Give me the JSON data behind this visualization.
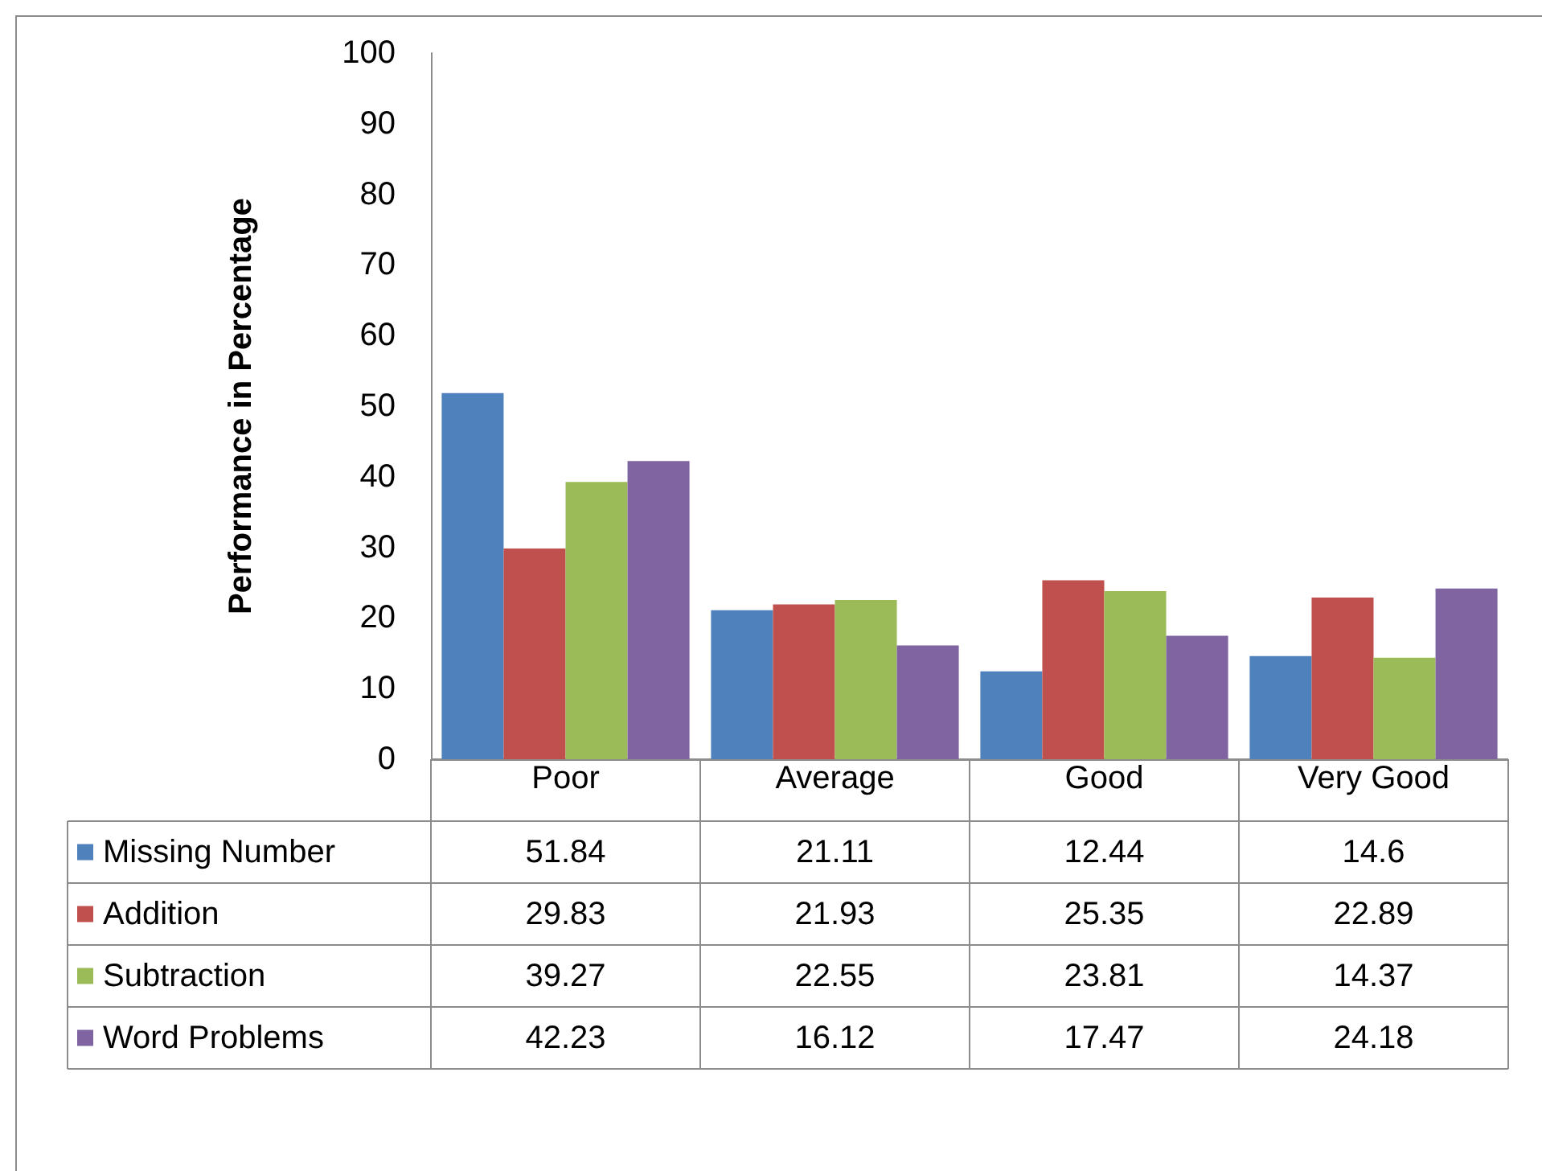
{
  "chart_data": {
    "type": "bar",
    "ylabel": "Performance in Percentage",
    "categories": [
      "Poor",
      "Average",
      "Good",
      "Very Good"
    ],
    "series": [
      {
        "name": "Missing Number",
        "color": "#4f81bd",
        "values": [
          51.84,
          21.11,
          12.44,
          14.6
        ]
      },
      {
        "name": "Addition",
        "color": "#c0504d",
        "values": [
          29.83,
          21.93,
          25.35,
          22.89
        ]
      },
      {
        "name": "Subtraction",
        "color": "#9bbb59",
        "values": [
          39.27,
          22.55,
          23.81,
          14.37
        ]
      },
      {
        "name": "Word Problems",
        "color": "#8064a2",
        "values": [
          42.23,
          16.12,
          17.47,
          24.18
        ]
      }
    ],
    "ylim": [
      0,
      100
    ],
    "yticks": [
      0,
      10,
      20,
      30,
      40,
      50,
      60,
      70,
      80,
      90,
      100
    ],
    "grid": false,
    "legend": "bottom",
    "data_labels": true
  }
}
